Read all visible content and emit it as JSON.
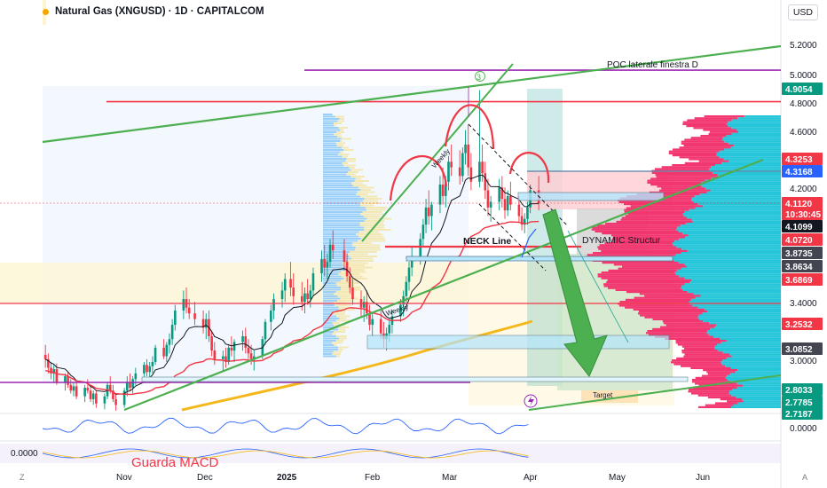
{
  "header": {
    "title": "Natural Gas (XNGUSD) · 1D · CAPITALCOM",
    "currency": "USD"
  },
  "corners": {
    "left": "Z",
    "right": "A"
  },
  "axes": {
    "price_ticks": [
      "5.2000",
      "5.0000",
      "4.8000",
      "4.6000",
      "4.2000",
      "3.4000",
      "3.0000"
    ],
    "indicator_tick": "0.0000",
    "macd_tick": "0.0000",
    "time_ticks": [
      "Nov",
      "Dec",
      "2025",
      "Feb",
      "Mar",
      "Apr",
      "May",
      "Jun"
    ]
  },
  "price_tags": [
    {
      "value": "4.9054",
      "color": "#089981"
    },
    {
      "value": "4.3253",
      "color": "#f23645"
    },
    {
      "value": "4.3168",
      "color": "#2962ff"
    },
    {
      "value": "4.1120",
      "color": "#f23645"
    },
    {
      "value": "10:30:45",
      "color": "#f23645"
    },
    {
      "value": "4.1099",
      "color": "#131722"
    },
    {
      "value": "4.0720",
      "color": "#f23645"
    },
    {
      "value": "3.8735",
      "color": "#434651"
    },
    {
      "value": "3.8634",
      "color": "#434651"
    },
    {
      "value": "3.6869",
      "color": "#f23645"
    },
    {
      "value": "3.2532",
      "color": "#f23645"
    },
    {
      "value": "3.0852",
      "color": "#434651"
    },
    {
      "value": "2.8033",
      "color": "#089981"
    },
    {
      "value": "2.7785",
      "color": "#089981"
    },
    {
      "value": "2.7187",
      "color": "#089981"
    }
  ],
  "annotations": {
    "poc": "POC laterale finestra D",
    "wave": "3",
    "neck": "NECK Line",
    "dynamic": "DYNAMIC Structur",
    "target": "Target",
    "weekly_upper": "Weekly",
    "weekly_lower": "Weekly",
    "macd": "Guarda MACD"
  },
  "colors": {
    "up": "#089981",
    "down": "#f23645",
    "channel": "#4caf50",
    "resistance": "#f23645",
    "poc": "#9c27b0",
    "ema_fast": "#131722",
    "ema_mid": "#f23645",
    "ema_slow": "#f5b81b",
    "vp_blue": "#90caf9",
    "vp_cream": "#f3e7b3",
    "vp_right_pink": "#f23670",
    "vp_right_cyan": "#26c6da"
  },
  "chart_data": {
    "type": "candlestick",
    "title": "Natural Gas (XNGUSD) · 1D · CAPITALCOM",
    "x_range": [
      "2024-10-06",
      "2025-06-23"
    ],
    "y_range": [
      2.65,
      5.35
    ],
    "ohlc": [
      [
        "2024-10-07",
        3.05,
        3.12,
        2.96,
        3.02
      ],
      [
        "2024-10-08",
        3.02,
        3.06,
        2.92,
        2.96
      ],
      [
        "2024-10-09",
        2.96,
        3.0,
        2.88,
        2.92
      ],
      [
        "2024-10-10",
        2.92,
        2.98,
        2.86,
        2.95
      ],
      [
        "2024-10-11",
        2.95,
        2.99,
        2.84,
        2.86
      ],
      [
        "2024-10-14",
        2.86,
        2.92,
        2.8,
        2.9
      ],
      [
        "2024-10-15",
        2.9,
        2.93,
        2.82,
        2.84
      ],
      [
        "2024-10-16",
        2.84,
        2.88,
        2.78,
        2.8
      ],
      [
        "2024-10-17",
        2.8,
        2.86,
        2.76,
        2.83
      ],
      [
        "2024-10-18",
        2.83,
        2.87,
        2.74,
        2.76
      ],
      [
        "2024-10-21",
        2.76,
        2.84,
        2.72,
        2.82
      ],
      [
        "2024-10-22",
        2.82,
        2.88,
        2.78,
        2.8
      ],
      [
        "2024-10-23",
        2.8,
        2.84,
        2.72,
        2.74
      ],
      [
        "2024-10-24",
        2.74,
        2.8,
        2.7,
        2.78
      ],
      [
        "2024-10-25",
        2.78,
        2.8,
        2.68,
        2.71
      ],
      [
        "2024-10-28",
        2.71,
        2.78,
        2.67,
        2.76
      ],
      [
        "2024-10-29",
        2.76,
        2.86,
        2.74,
        2.84
      ],
      [
        "2024-10-30",
        2.84,
        2.9,
        2.78,
        2.8
      ],
      [
        "2024-10-31",
        2.8,
        2.84,
        2.72,
        2.74
      ],
      [
        "2024-11-01",
        2.74,
        2.78,
        2.66,
        2.7
      ],
      [
        "2024-11-04",
        2.7,
        2.82,
        2.68,
        2.8
      ],
      [
        "2024-11-05",
        2.8,
        2.9,
        2.76,
        2.86
      ],
      [
        "2024-11-06",
        2.86,
        2.92,
        2.8,
        2.82
      ],
      [
        "2024-11-07",
        2.82,
        2.9,
        2.78,
        2.88
      ],
      [
        "2024-11-08",
        2.88,
        2.96,
        2.84,
        2.92
      ],
      [
        "2024-11-11",
        2.92,
        3.0,
        2.88,
        2.98
      ],
      [
        "2024-11-12",
        2.98,
        3.02,
        2.9,
        2.93
      ],
      [
        "2024-11-13",
        2.93,
        3.0,
        2.86,
        2.97
      ],
      [
        "2024-11-14",
        2.97,
        3.04,
        2.92,
        3.0
      ],
      [
        "2024-11-15",
        3.0,
        3.12,
        2.98,
        3.1
      ],
      [
        "2024-11-18",
        3.1,
        3.16,
        3.02,
        3.04
      ],
      [
        "2024-11-19",
        3.04,
        3.14,
        3.0,
        3.12
      ],
      [
        "2024-11-20",
        3.12,
        3.2,
        3.06,
        3.16
      ],
      [
        "2024-11-21",
        3.16,
        3.3,
        3.12,
        3.26
      ],
      [
        "2024-11-22",
        3.26,
        3.4,
        3.22,
        3.36
      ],
      [
        "2024-11-25",
        3.36,
        3.5,
        3.3,
        3.44
      ],
      [
        "2024-11-26",
        3.44,
        3.52,
        3.34,
        3.38
      ],
      [
        "2024-11-27",
        3.38,
        3.44,
        3.3,
        3.34
      ],
      [
        "2024-11-29",
        3.34,
        3.42,
        3.26,
        3.3
      ],
      [
        "2024-12-02",
        3.3,
        3.36,
        3.2,
        3.24
      ],
      [
        "2024-12-03",
        3.24,
        3.34,
        3.16,
        3.3
      ],
      [
        "2024-12-04",
        3.3,
        3.36,
        3.14,
        3.18
      ],
      [
        "2024-12-05",
        3.18,
        3.22,
        3.04,
        3.08
      ],
      [
        "2024-12-06",
        3.08,
        3.14,
        2.98,
        3.02
      ],
      [
        "2024-12-09",
        3.02,
        3.08,
        2.94,
        3.04
      ],
      [
        "2024-12-10",
        3.04,
        3.1,
        2.96,
        3.0
      ],
      [
        "2024-12-11",
        3.0,
        3.12,
        2.98,
        3.1
      ],
      [
        "2024-12-12",
        3.1,
        3.18,
        3.04,
        3.08
      ],
      [
        "2024-12-13",
        3.08,
        3.16,
        3.0,
        3.14
      ],
      [
        "2024-12-16",
        3.14,
        3.22,
        3.08,
        3.18
      ],
      [
        "2024-12-17",
        3.18,
        3.24,
        3.06,
        3.1
      ],
      [
        "2024-12-18",
        3.1,
        3.16,
        3.02,
        3.06
      ],
      [
        "2024-12-19",
        3.06,
        3.12,
        2.98,
        3.02
      ],
      [
        "2024-12-20",
        3.02,
        3.08,
        2.94,
        3.04
      ],
      [
        "2024-12-23",
        3.04,
        3.18,
        3.02,
        3.16
      ],
      [
        "2024-12-24",
        3.16,
        3.3,
        3.12,
        3.28
      ],
      [
        "2024-12-26",
        3.28,
        3.4,
        3.22,
        3.36
      ],
      [
        "2024-12-27",
        3.36,
        3.48,
        3.3,
        3.44
      ],
      [
        "2024-12-30",
        3.44,
        3.56,
        3.38,
        3.5
      ],
      [
        "2024-12-31",
        3.5,
        3.62,
        3.42,
        3.58
      ],
      [
        "2025-01-02",
        3.58,
        3.7,
        3.46,
        3.52
      ],
      [
        "2025-01-03",
        3.52,
        3.62,
        3.4,
        3.46
      ],
      [
        "2025-01-06",
        3.46,
        3.56,
        3.36,
        3.42
      ],
      [
        "2025-01-07",
        3.42,
        3.52,
        3.34,
        3.48
      ],
      [
        "2025-01-08",
        3.48,
        3.58,
        3.4,
        3.44
      ],
      [
        "2025-01-09",
        3.44,
        3.54,
        3.38,
        3.5
      ],
      [
        "2025-01-10",
        3.5,
        3.66,
        3.46,
        3.62
      ],
      [
        "2025-01-13",
        3.62,
        3.78,
        3.56,
        3.72
      ],
      [
        "2025-01-14",
        3.72,
        3.82,
        3.6,
        3.66
      ],
      [
        "2025-01-15",
        3.66,
        3.76,
        3.58,
        3.7
      ],
      [
        "2025-01-16",
        3.7,
        3.86,
        3.66,
        3.82
      ],
      [
        "2025-01-17",
        3.82,
        3.92,
        3.72,
        3.78
      ],
      [
        "2025-01-21",
        3.78,
        3.86,
        3.64,
        3.7
      ],
      [
        "2025-01-22",
        3.7,
        3.76,
        3.56,
        3.6
      ],
      [
        "2025-01-23",
        3.6,
        3.66,
        3.48,
        3.52
      ],
      [
        "2025-01-24",
        3.52,
        3.58,
        3.4,
        3.44
      ],
      [
        "2025-01-27",
        3.44,
        3.5,
        3.32,
        3.38
      ],
      [
        "2025-01-28",
        3.38,
        3.46,
        3.28,
        3.42
      ],
      [
        "2025-01-29",
        3.42,
        3.5,
        3.3,
        3.34
      ],
      [
        "2025-01-30",
        3.34,
        3.4,
        3.22,
        3.26
      ],
      [
        "2025-01-31",
        3.26,
        3.34,
        3.18,
        3.3
      ],
      [
        "2025-02-03",
        3.3,
        3.36,
        3.16,
        3.2
      ],
      [
        "2025-02-04",
        3.2,
        3.28,
        3.1,
        3.16
      ],
      [
        "2025-02-05",
        3.16,
        3.24,
        3.08,
        3.2
      ],
      [
        "2025-02-06",
        3.2,
        3.3,
        3.14,
        3.26
      ],
      [
        "2025-02-07",
        3.26,
        3.36,
        3.2,
        3.32
      ],
      [
        "2025-02-10",
        3.32,
        3.44,
        3.28,
        3.4
      ],
      [
        "2025-02-11",
        3.4,
        3.5,
        3.32,
        3.46
      ],
      [
        "2025-02-12",
        3.46,
        3.6,
        3.4,
        3.56
      ],
      [
        "2025-02-13",
        3.56,
        3.7,
        3.5,
        3.66
      ],
      [
        "2025-02-14",
        3.66,
        3.8,
        3.6,
        3.74
      ],
      [
        "2025-02-17",
        3.74,
        3.9,
        3.68,
        3.86
      ],
      [
        "2025-02-18",
        3.86,
        4.0,
        3.8,
        3.96
      ],
      [
        "2025-02-19",
        3.96,
        4.14,
        3.9,
        4.08
      ],
      [
        "2025-02-20",
        4.08,
        4.2,
        3.96,
        4.02
      ],
      [
        "2025-02-21",
        4.02,
        4.12,
        3.92,
        4.1
      ],
      [
        "2025-02-24",
        4.1,
        4.3,
        4.04,
        4.24
      ],
      [
        "2025-02-25",
        4.24,
        4.36,
        4.1,
        4.16
      ],
      [
        "2025-02-26",
        4.16,
        4.3,
        4.08,
        4.26
      ],
      [
        "2025-02-27",
        4.26,
        4.44,
        4.2,
        4.4
      ],
      [
        "2025-02-28",
        4.4,
        4.52,
        4.3,
        4.36
      ],
      [
        "2025-03-03",
        4.36,
        4.48,
        4.24,
        4.3
      ],
      [
        "2025-03-04",
        4.3,
        4.5,
        4.26,
        4.46
      ],
      [
        "2025-03-05",
        4.46,
        4.62,
        4.38,
        4.52
      ],
      [
        "2025-03-06",
        4.52,
        4.66,
        4.3,
        4.36
      ],
      [
        "2025-03-07",
        4.36,
        4.46,
        4.2,
        4.26
      ],
      [
        "2025-03-10",
        4.26,
        4.9,
        4.22,
        4.4
      ],
      [
        "2025-03-11",
        4.4,
        4.52,
        4.26,
        4.32
      ],
      [
        "2025-03-12",
        4.32,
        4.4,
        4.14,
        4.2
      ],
      [
        "2025-03-13",
        4.2,
        4.28,
        4.02,
        4.08
      ],
      [
        "2025-03-14",
        4.08,
        4.16,
        3.98,
        4.12
      ],
      [
        "2025-03-17",
        4.12,
        4.28,
        4.06,
        4.22
      ],
      [
        "2025-03-18",
        4.22,
        4.3,
        4.08,
        4.14
      ],
      [
        "2025-03-19",
        4.14,
        4.22,
        4.0,
        4.06
      ],
      [
        "2025-03-20",
        4.06,
        4.2,
        4.02,
        4.16
      ],
      [
        "2025-03-21",
        4.16,
        4.26,
        4.06,
        4.1
      ],
      [
        "2025-03-24",
        4.1,
        4.16,
        3.98,
        4.02
      ],
      [
        "2025-03-25",
        4.02,
        4.08,
        3.92,
        3.96
      ],
      [
        "2025-03-26",
        3.96,
        4.04,
        3.9,
        4.0
      ],
      [
        "2025-03-27",
        4.0,
        4.12,
        3.96,
        4.08
      ],
      [
        "2025-03-28",
        4.08,
        4.24,
        4.04,
        4.2
      ],
      [
        "2025-03-31",
        4.2,
        4.3,
        4.06,
        4.11
      ]
    ],
    "overlays": {
      "resistance_level": 4.82,
      "poc_level": 5.04,
      "poc_lower_level": 2.79,
      "neck_line": 3.88,
      "dynamic_structure_level": 3.87,
      "target_zone": [
        2.7,
        2.8
      ],
      "last_price": 4.112
    }
  }
}
